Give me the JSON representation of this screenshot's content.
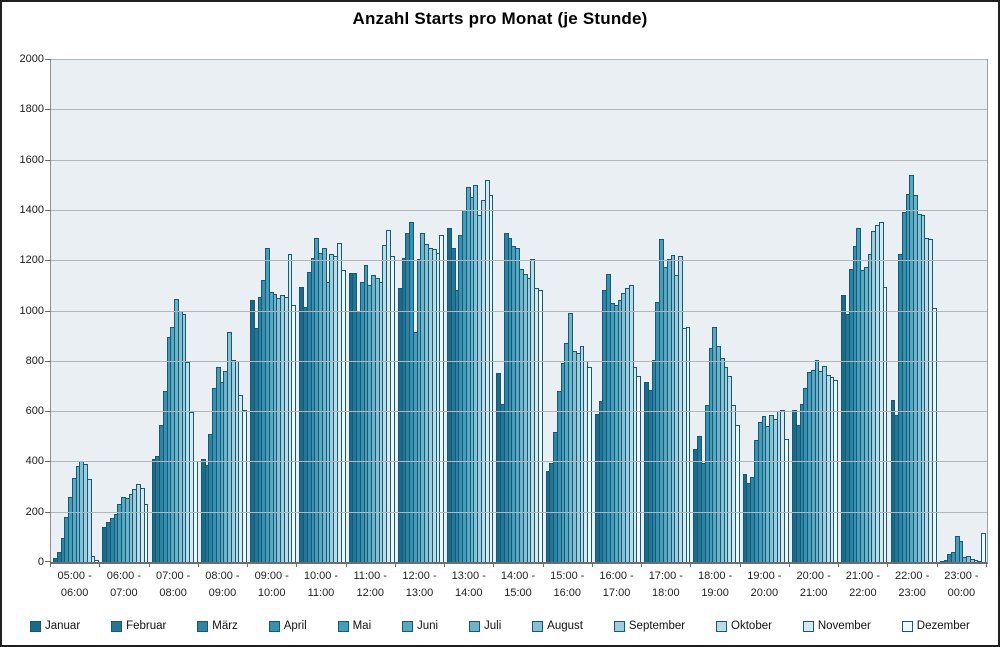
{
  "chart_data": {
    "type": "bar",
    "title": "Anzahl Starts pro Monat (je Stunde)",
    "ylim": [
      0,
      2000
    ],
    "yticks": [
      0,
      200,
      400,
      600,
      800,
      1000,
      1200,
      1400,
      1600,
      1800,
      2000
    ],
    "grid": true,
    "legend_position": "bottom",
    "plot_bg": "#e9eff3",
    "grid_color": "#b2b6ba",
    "axis_color": "#6e6e6e",
    "bar_border_color": "#155a72",
    "categories": [
      "05:00 -\n06:00",
      "06:00 -\n07:00",
      "07:00 -\n08:00",
      "08:00 -\n09:00",
      "09:00 -\n10:00",
      "10:00 -\n11:00",
      "11:00 -\n12:00",
      "12:00 -\n13:00",
      "13:00 -\n14:00",
      "14:00 -\n15:00",
      "15:00 -\n16:00",
      "16:00 -\n17:00",
      "17:00 -\n18:00",
      "18:00 -\n19:00",
      "19:00 -\n20:00",
      "20:00 -\n21:00",
      "21:00 -\n22:00",
      "22:00 -\n23:00",
      "23:00 -\n00:00"
    ],
    "series": [
      {
        "name": "Januar",
        "color": "#1a6b89",
        "values": [
          15,
          140,
          410,
          410,
          1040,
          1095,
          1150,
          1090,
          1330,
          750,
          360,
          590,
          715,
          450,
          350,
          605,
          1060,
          645,
          3
        ]
      },
      {
        "name": "Februar",
        "color": "#227798",
        "values": [
          40,
          160,
          420,
          385,
          930,
          1015,
          1150,
          1210,
          1250,
          630,
          395,
          640,
          685,
          500,
          315,
          545,
          985,
          585,
          10
        ]
      },
      {
        "name": "März",
        "color": "#2b83a5",
        "values": [
          95,
          175,
          545,
          510,
          1055,
          1155,
          1000,
          1310,
          1080,
          1310,
          515,
          1080,
          805,
          395,
          340,
          630,
          1165,
          1225,
          30
        ]
      },
      {
        "name": "April",
        "color": "#3590b2",
        "values": [
          180,
          190,
          680,
          690,
          1120,
          1210,
          1115,
          1350,
          1300,
          1290,
          680,
          1145,
          1035,
          625,
          485,
          690,
          1255,
          1390,
          40
        ]
      },
      {
        "name": "Mai",
        "color": "#459cbb",
        "values": [
          260,
          230,
          895,
          775,
          1250,
          1290,
          1180,
          915,
          1400,
          1255,
          790,
          1030,
          1285,
          850,
          555,
          755,
          1330,
          1465,
          105
        ]
      },
      {
        "name": "Juni",
        "color": "#57a8c3",
        "values": [
          335,
          260,
          935,
          715,
          1075,
          1230,
          1100,
          1205,
          1490,
          1250,
          870,
          1020,
          1175,
          935,
          580,
          765,
          1160,
          1540,
          85
        ]
      },
      {
        "name": "Juli",
        "color": "#6cb4cc",
        "values": [
          380,
          255,
          1045,
          760,
          1065,
          1250,
          1140,
          1310,
          1450,
          1165,
          990,
          1040,
          1205,
          860,
          540,
          805,
          1175,
          1460,
          20
        ]
      },
      {
        "name": "August",
        "color": "#84c1d4",
        "values": [
          400,
          270,
          1000,
          915,
          1050,
          1115,
          1130,
          1265,
          1500,
          1145,
          840,
          1070,
          1220,
          810,
          585,
          760,
          1225,
          1385,
          25
        ]
      },
      {
        "name": "September",
        "color": "#9ecedd",
        "values": [
          390,
          290,
          985,
          805,
          1060,
          1225,
          1115,
          1250,
          1380,
          1130,
          830,
          1090,
          1140,
          775,
          570,
          780,
          1315,
          1380,
          12
        ]
      },
      {
        "name": "Oktober",
        "color": "#b9dce6",
        "values": [
          330,
          310,
          795,
          800,
          1055,
          1215,
          1260,
          1245,
          1440,
          1205,
          860,
          1100,
          1215,
          740,
          600,
          745,
          1340,
          1290,
          8
        ]
      },
      {
        "name": "November",
        "color": "#d5e9ee",
        "values": [
          25,
          295,
          595,
          665,
          1225,
          1270,
          1320,
          1230,
          1520,
          1090,
          800,
          775,
          930,
          625,
          605,
          735,
          1350,
          1285,
          5
        ]
      },
      {
        "name": "Dezember",
        "color": "#eef7f9",
        "values": [
          10,
          230,
          400,
          605,
          1020,
          1160,
          1215,
          1300,
          1460,
          1080,
          775,
          740,
          935,
          545,
          490,
          725,
          1095,
          1010,
          115
        ]
      }
    ]
  }
}
